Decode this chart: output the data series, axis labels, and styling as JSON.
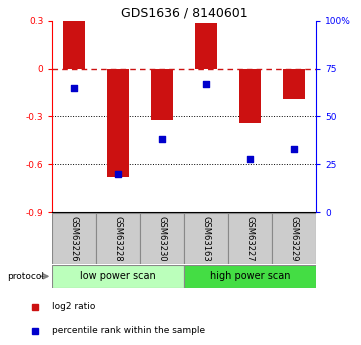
{
  "title": "GDS1636 / 8140601",
  "samples": [
    "GSM63226",
    "GSM63228",
    "GSM63230",
    "GSM63163",
    "GSM63227",
    "GSM63229"
  ],
  "log2_ratio": [
    0.3,
    -0.68,
    -0.32,
    0.285,
    -0.34,
    -0.19
  ],
  "percentile_rank": [
    65,
    20,
    38,
    67,
    28,
    33
  ],
  "ylim_left": [
    -0.9,
    0.3
  ],
  "ylim_right": [
    0,
    100
  ],
  "yticks_left": [
    0.3,
    0.0,
    -0.3,
    -0.6,
    -0.9
  ],
  "yticks_right": [
    100,
    75,
    50,
    25,
    0
  ],
  "protocol_labels": [
    "low power scan",
    "high power scan"
  ],
  "protocol_groups": [
    3,
    3
  ],
  "bar_color": "#cc1111",
  "dot_color": "#0000cc",
  "bar_width": 0.5,
  "dot_size": 25,
  "legend_bar_label": "log2 ratio",
  "legend_dot_label": "percentile rank within the sample",
  "hline_color": "#cc1111",
  "title_size": 9,
  "label_box_color": "#cccccc",
  "proto_low_color": "#bbffbb",
  "proto_high_color": "#44dd44"
}
